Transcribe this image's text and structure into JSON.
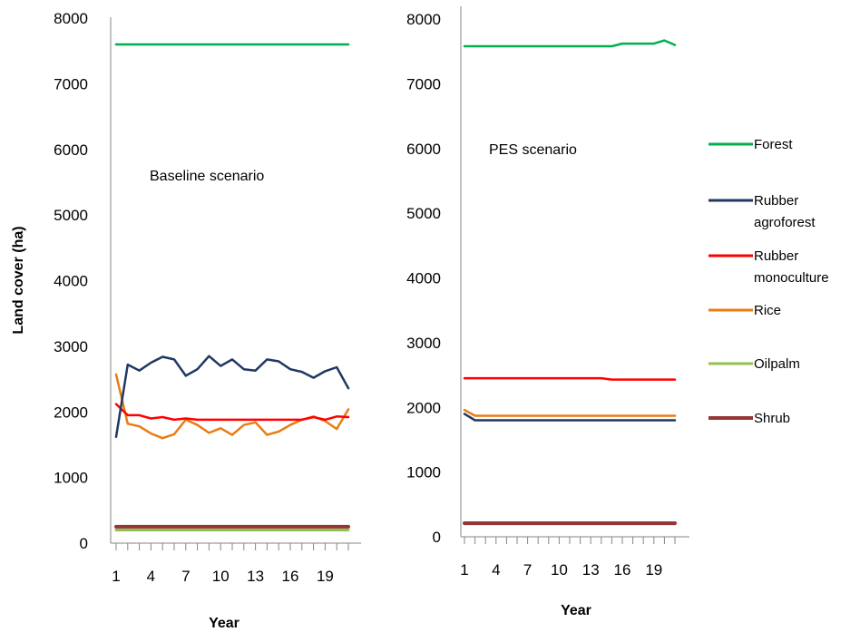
{
  "chart_data": [
    {
      "type": "line",
      "title": "",
      "annotation": "Baseline scenario",
      "xlabel": "Year",
      "ylabel": "Land cover (ha)",
      "ylim": [
        0,
        8000
      ],
      "yticks": [
        "0",
        "1000",
        "2000",
        "3000",
        "4000",
        "5000",
        "6000",
        "7000",
        "8000"
      ],
      "x": [
        1,
        2,
        3,
        4,
        5,
        6,
        7,
        8,
        9,
        10,
        11,
        12,
        13,
        14,
        15,
        16,
        17,
        18,
        19,
        20,
        21
      ],
      "xtick_labels": [
        "1",
        "4",
        "7",
        "10",
        "13",
        "16",
        "19"
      ],
      "grid": false,
      "series": [
        {
          "name": "Forest",
          "color": "#00b050",
          "values": [
            7600,
            7600,
            7600,
            7600,
            7600,
            7600,
            7600,
            7600,
            7600,
            7600,
            7600,
            7600,
            7600,
            7600,
            7600,
            7600,
            7600,
            7600,
            7600,
            7600,
            7600
          ]
        },
        {
          "name": "Rubber agroforest",
          "color": "#1f3864",
          "values": [
            1620,
            2720,
            2630,
            2750,
            2840,
            2800,
            2550,
            2650,
            2850,
            2700,
            2800,
            2650,
            2630,
            2800,
            2770,
            2650,
            2610,
            2520,
            2620,
            2680,
            2360
          ]
        },
        {
          "name": "Rubber monoculture",
          "color": "#ff0000",
          "values": [
            2120,
            1950,
            1950,
            1900,
            1920,
            1880,
            1900,
            1880,
            1880,
            1880,
            1880,
            1880,
            1880,
            1880,
            1880,
            1880,
            1880,
            1920,
            1880,
            1930,
            1920
          ]
        },
        {
          "name": "Rice",
          "color": "#e87d12",
          "values": [
            2570,
            1820,
            1780,
            1670,
            1600,
            1660,
            1880,
            1800,
            1680,
            1750,
            1650,
            1800,
            1840,
            1650,
            1700,
            1800,
            1880,
            1930,
            1860,
            1740,
            2040
          ]
        },
        {
          "name": "Oilpalm",
          "color": "#92c050",
          "values": [
            200,
            200,
            200,
            200,
            200,
            200,
            200,
            200,
            200,
            200,
            200,
            200,
            200,
            200,
            200,
            200,
            200,
            200,
            200,
            200,
            200
          ]
        },
        {
          "name": "Shrub",
          "color": "#943634",
          "values": [
            250,
            250,
            250,
            250,
            250,
            250,
            250,
            250,
            250,
            250,
            250,
            250,
            250,
            250,
            250,
            250,
            250,
            250,
            250,
            250,
            250
          ]
        }
      ]
    },
    {
      "type": "line",
      "title": "",
      "annotation": "PES scenario",
      "xlabel": "Year",
      "ylabel": "",
      "ylim": [
        0,
        8000
      ],
      "yticks": [
        "0",
        "1000",
        "2000",
        "3000",
        "4000",
        "5000",
        "6000",
        "7000",
        "8000"
      ],
      "x": [
        1,
        2,
        3,
        4,
        5,
        6,
        7,
        8,
        9,
        10,
        11,
        12,
        13,
        14,
        15,
        16,
        17,
        18,
        19,
        20,
        21
      ],
      "xtick_labels": [
        "1",
        "4",
        "7",
        "10",
        "13",
        "16",
        "19"
      ],
      "grid": false,
      "series": [
        {
          "name": "Forest",
          "color": "#00b050",
          "values": [
            7580,
            7580,
            7580,
            7580,
            7580,
            7580,
            7580,
            7580,
            7580,
            7580,
            7580,
            7580,
            7580,
            7580,
            7580,
            7620,
            7620,
            7620,
            7620,
            7670,
            7600
          ]
        },
        {
          "name": "Rubber agroforest",
          "color": "#1f3864",
          "values": [
            1900,
            1800,
            1800,
            1800,
            1800,
            1800,
            1800,
            1800,
            1800,
            1800,
            1800,
            1800,
            1800,
            1800,
            1800,
            1800,
            1800,
            1800,
            1800,
            1800,
            1800
          ]
        },
        {
          "name": "Rubber monoculture",
          "color": "#ff0000",
          "values": [
            2450,
            2450,
            2450,
            2450,
            2450,
            2450,
            2450,
            2450,
            2450,
            2450,
            2450,
            2450,
            2450,
            2450,
            2430,
            2430,
            2430,
            2430,
            2430,
            2430,
            2430
          ]
        },
        {
          "name": "Rice",
          "color": "#e87d12",
          "values": [
            1960,
            1870,
            1870,
            1870,
            1870,
            1870,
            1870,
            1870,
            1870,
            1870,
            1870,
            1870,
            1870,
            1870,
            1870,
            1870,
            1870,
            1870,
            1870,
            1870,
            1870
          ]
        },
        {
          "name": "Oilpalm",
          "color": "#92c050",
          "values": [
            200,
            200,
            200,
            200,
            200,
            200,
            200,
            200,
            200,
            200,
            200,
            200,
            200,
            200,
            200,
            200,
            200,
            200,
            200,
            200,
            200
          ]
        },
        {
          "name": "Shrub",
          "color": "#943634",
          "values": [
            210,
            210,
            210,
            210,
            210,
            210,
            210,
            210,
            210,
            210,
            210,
            210,
            210,
            210,
            210,
            210,
            210,
            210,
            210,
            210,
            210
          ]
        }
      ]
    }
  ],
  "legend": {
    "placement": "right",
    "items": [
      {
        "lines": [
          "Forest"
        ],
        "color": "#00b050"
      },
      {
        "lines": [
          "Rubber",
          "agroforest"
        ],
        "color": "#1f3864"
      },
      {
        "lines": [
          "Rubber",
          "monoculture"
        ],
        "color": "#ff0000"
      },
      {
        "lines": [
          "Rice"
        ],
        "color": "#e87d12"
      },
      {
        "lines": [
          "Oilpalm"
        ],
        "color": "#92c050"
      },
      {
        "lines": [
          "Shrub"
        ],
        "color": "#943634"
      }
    ]
  }
}
